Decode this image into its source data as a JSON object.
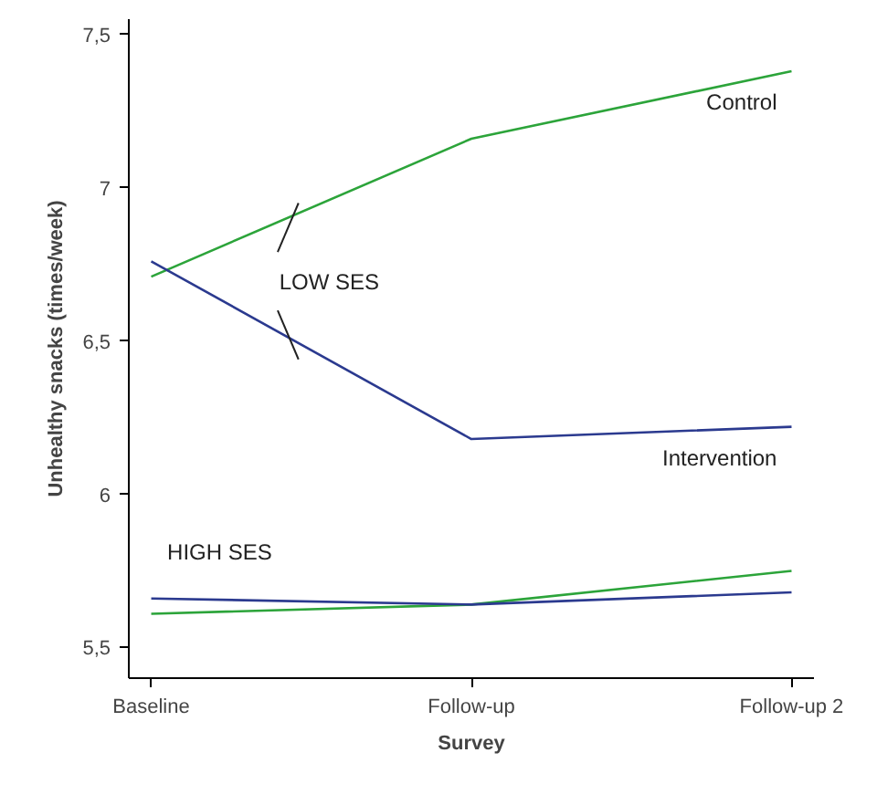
{
  "chart_data": {
    "type": "line",
    "xlabel": "Survey",
    "ylabel": "Unhealthy snacks (times/week)",
    "categories": [
      "Baseline",
      "Follow-up",
      "Follow-up 2"
    ],
    "series": [
      {
        "name": "Control",
        "color": "#2ca43a",
        "values": [
          6.71,
          7.16,
          7.38
        ]
      },
      {
        "name": "Intervention",
        "color": "#2b3a8f",
        "values": [
          6.76,
          6.18,
          6.22
        ]
      },
      {
        "color": "#2ca43a",
        "values": [
          5.61,
          5.64,
          5.75
        ]
      },
      {
        "color": "#2b3a8f",
        "values": [
          5.66,
          5.64,
          5.68
        ]
      }
    ],
    "ylim": [
      5.4,
      7.55
    ],
    "yticks": [
      {
        "value": 5.5,
        "label": "5,5"
      },
      6,
      {
        "value": 6.5,
        "label": "6,5"
      },
      7,
      {
        "value": 7.5,
        "label": "7,5"
      }
    ],
    "annotations": [
      "LOW SES",
      "HIGH SES"
    ],
    "grid": false,
    "marker": "none",
    "line_style": "solid"
  }
}
